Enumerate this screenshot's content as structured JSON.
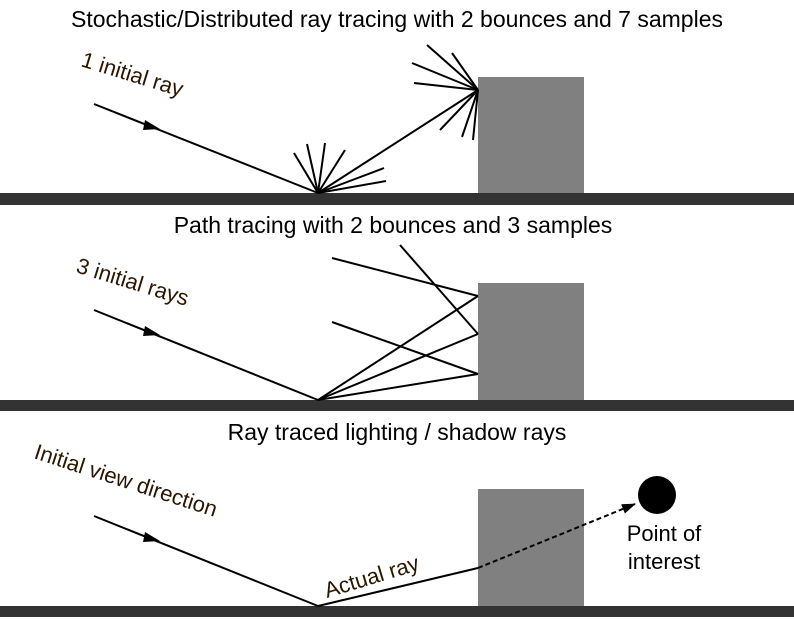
{
  "panels": [
    {
      "title": "Stochastic/Distributed ray tracing with 2 bounces and 7 samples",
      "ray_label": "1 initial ray"
    },
    {
      "title": "Path tracing with 2 bounces and 3 samples",
      "ray_label": "3 initial rays"
    },
    {
      "title": "Ray traced lighting / shadow rays",
      "ray_label": "Initial view direction",
      "actual_ray_label": "Actual ray",
      "point_label_line1": "Point of",
      "point_label_line2": "interest"
    }
  ],
  "colors": {
    "ground": "#333333",
    "obstacle": "#808080",
    "ray": "#000000",
    "label_text": "#2b1600",
    "title_text": "#000000"
  }
}
